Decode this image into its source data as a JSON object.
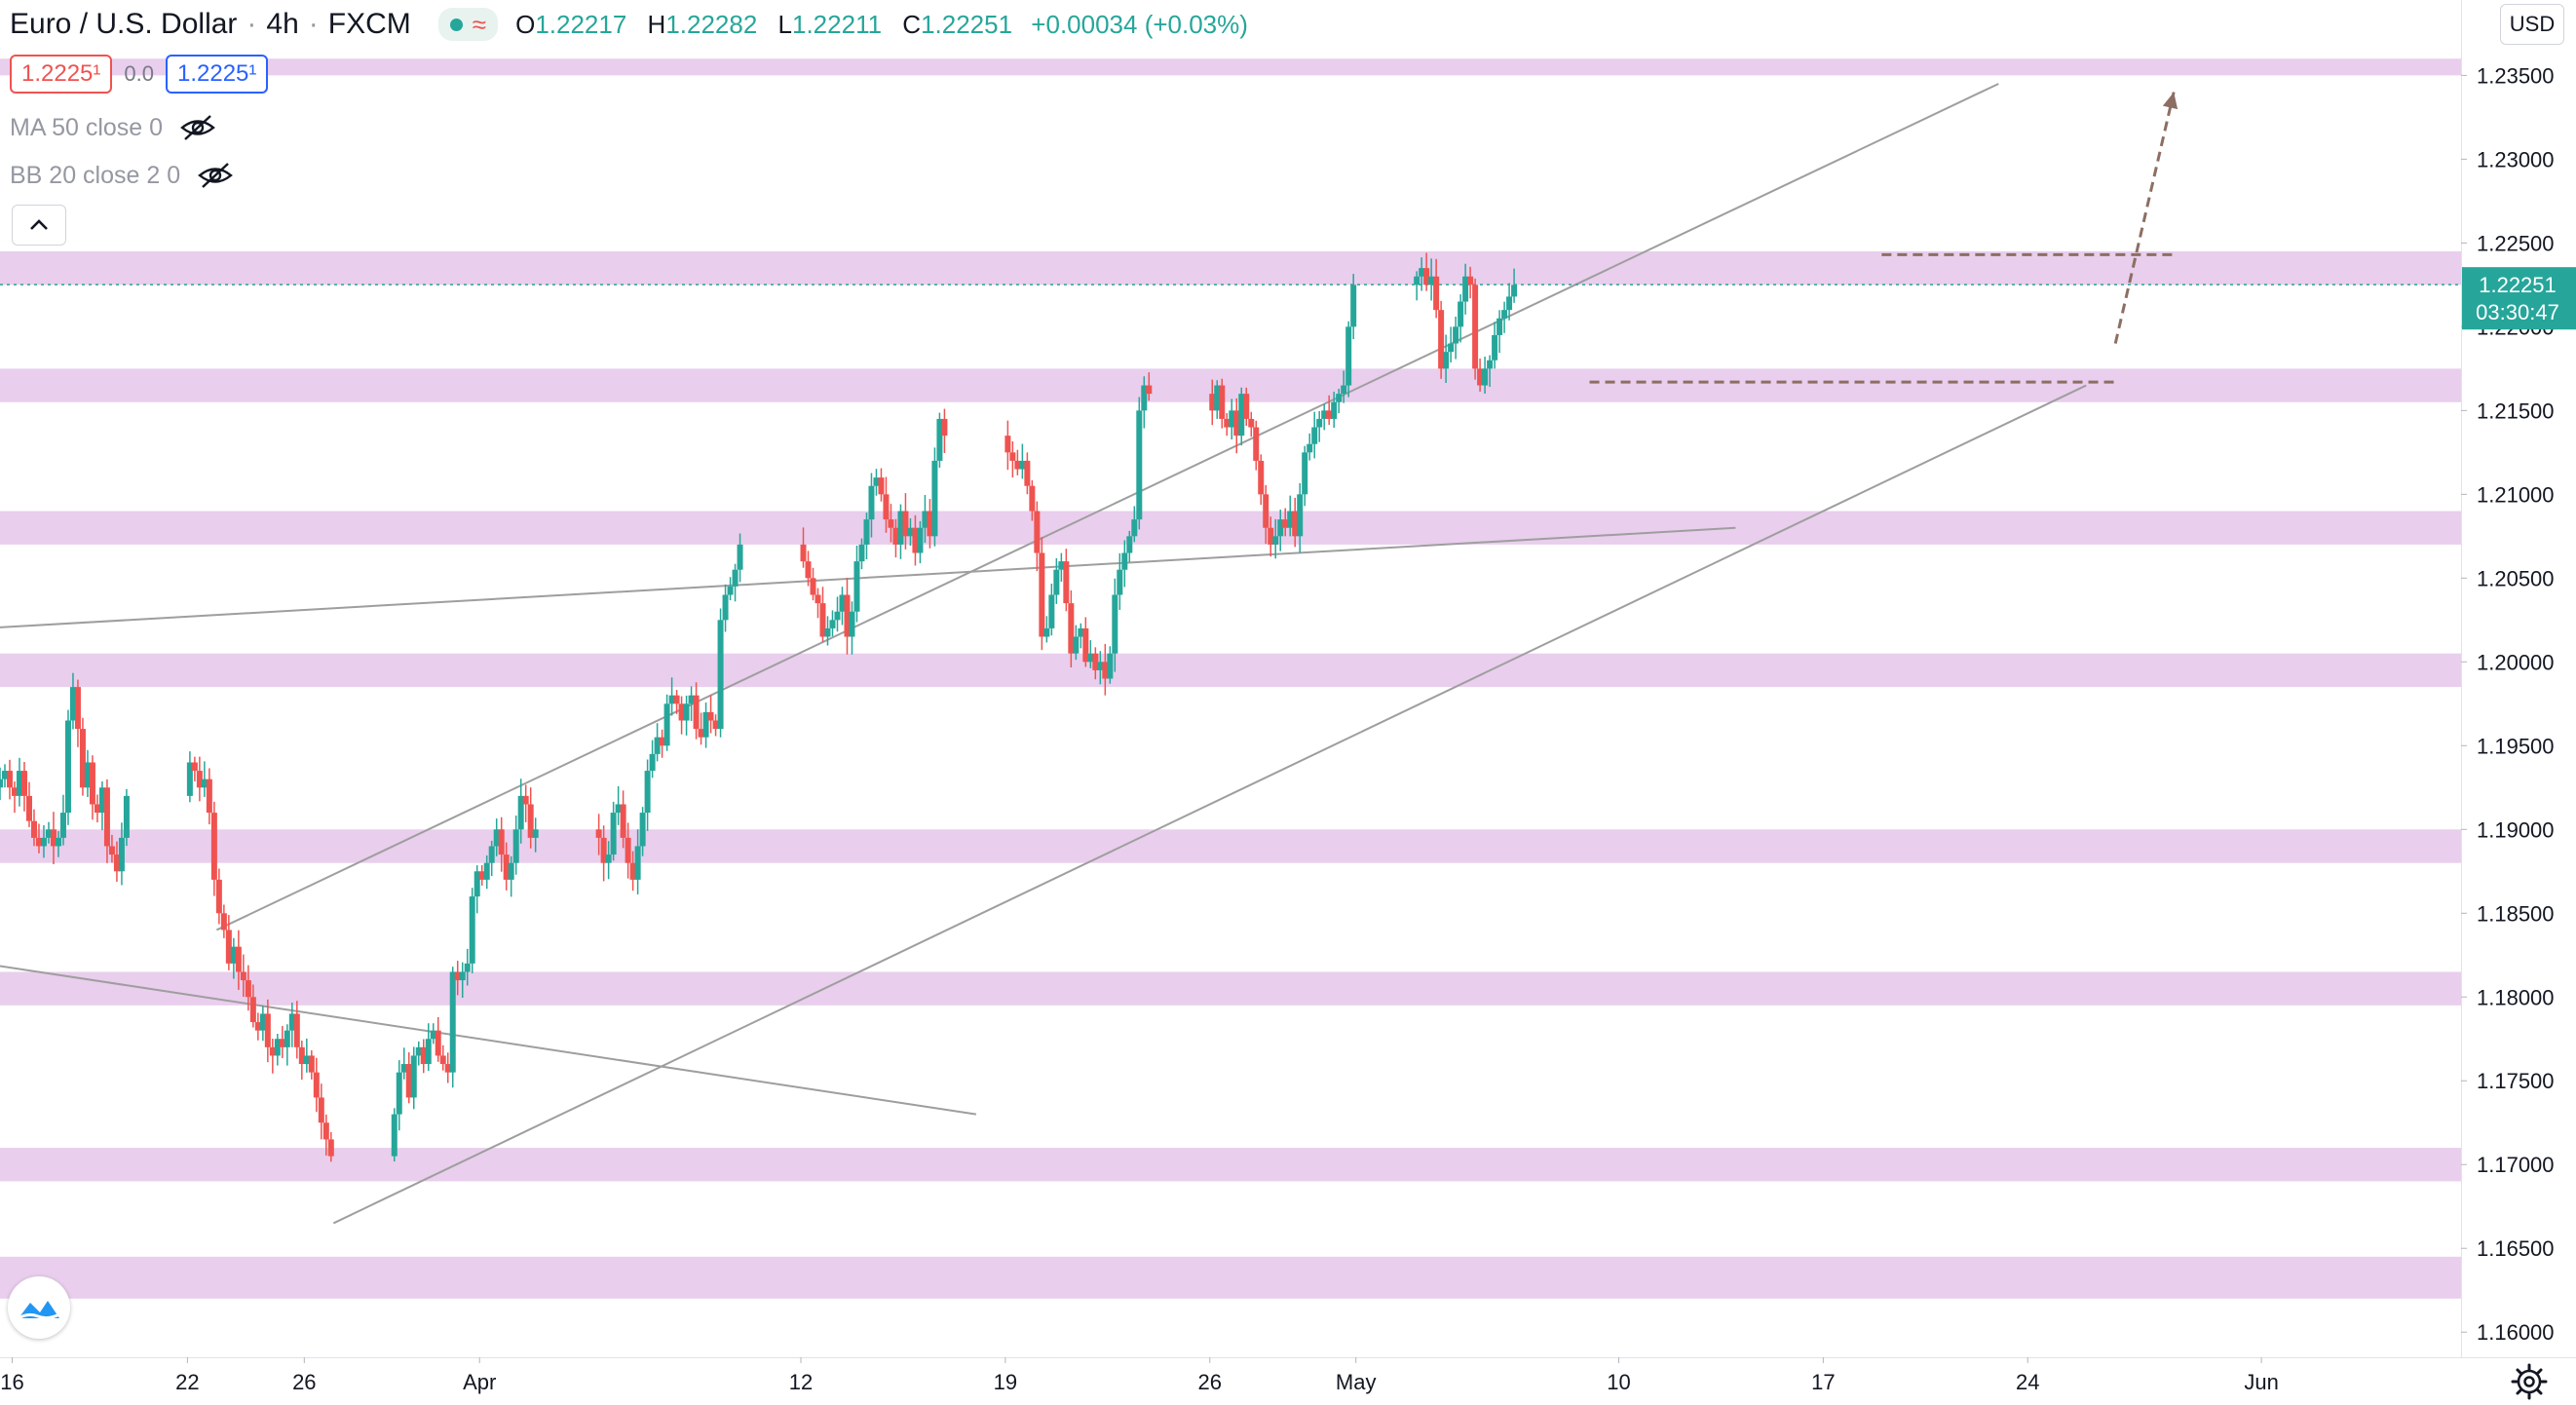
{
  "header": {
    "symbol": "Euro / U.S. Dollar",
    "interval": "4h",
    "exchange": "FXCM",
    "open_label": "O",
    "open": "1.22217",
    "high_label": "H",
    "high": "1.22282",
    "low_label": "L",
    "low": "1.22211",
    "close_label": "C",
    "close": "1.22251",
    "change": "+0.00034 (+0.03%)"
  },
  "quote": {
    "bid": "1.2225¹",
    "spread": "0.0",
    "ask": "1.2225¹"
  },
  "indicators": [
    {
      "label": "MA 50 close 0"
    },
    {
      "label": "BB 20 close 2 0"
    }
  ],
  "currency": "USD",
  "price_tag": {
    "price": "1.22251",
    "countdown": "03:30:47"
  },
  "colors": {
    "up": "#26a69a",
    "down": "#ef5350",
    "zone": "#e1bee7",
    "trendline": "#9e9e9e",
    "dashed": "#8d6e63"
  },
  "icons": {
    "visibility": "eye-off-icon",
    "collapse": "chevron-up-icon",
    "logo": "tradingview-logo-icon",
    "settings": "gear-icon"
  },
  "chart_data": {
    "type": "candlestick",
    "title": "Euro / U.S. Dollar · 4h · FXCM",
    "y_axis": {
      "ticks": [
        "1.16000",
        "1.16500",
        "1.17000",
        "1.17500",
        "1.18000",
        "1.18500",
        "1.19000",
        "1.19500",
        "1.20000",
        "1.20500",
        "1.21000",
        "1.21500",
        "1.22000",
        "1.22500",
        "1.23000",
        "1.23500"
      ],
      "range": [
        1.1585,
        1.2395
      ]
    },
    "x_axis": {
      "ticks": [
        {
          "label": "16",
          "date": "2021-03-16"
        },
        {
          "label": "22",
          "date": "2021-03-22"
        },
        {
          "label": "26",
          "date": "2021-03-26"
        },
        {
          "label": "Apr",
          "date": "2021-04-01"
        },
        {
          "label": "12",
          "date": "2021-04-12"
        },
        {
          "label": "19",
          "date": "2021-04-19"
        },
        {
          "label": "26",
          "date": "2021-04-26"
        },
        {
          "label": "May",
          "date": "2021-05-01"
        },
        {
          "label": "10",
          "date": "2021-05-10"
        },
        {
          "label": "17",
          "date": "2021-05-17"
        },
        {
          "label": "24",
          "date": "2021-05-24"
        },
        {
          "label": "Jun",
          "date": "2021-06-01"
        }
      ],
      "range": [
        "2021-03-15T14:00",
        "2021-06-07T20:00"
      ]
    },
    "candles": {
      "start": "2021-03-15T14:00",
      "interval_hours": 4,
      "weekend_gap": true,
      "close": [
        1.193,
        1.1935,
        1.1925,
        1.192,
        1.1935,
        1.192,
        1.1905,
        1.1895,
        1.189,
        1.1895,
        1.19,
        1.189,
        1.1895,
        1.191,
        1.1965,
        1.1985,
        1.196,
        1.1925,
        1.194,
        1.1915,
        1.191,
        1.1925,
        1.189,
        1.1885,
        1.1875,
        1.1895,
        1.192,
        1.194,
        1.1935,
        1.1925,
        1.193,
        1.191,
        1.187,
        1.185,
        1.184,
        1.182,
        1.183,
        1.1815,
        1.181,
        1.18,
        1.1785,
        1.178,
        1.179,
        1.177,
        1.1765,
        1.1775,
        1.177,
        1.178,
        1.179,
        1.177,
        1.176,
        1.1765,
        1.1755,
        1.174,
        1.1725,
        1.1715,
        1.1705,
        1.173,
        1.1755,
        1.176,
        1.174,
        1.1765,
        1.177,
        1.176,
        1.1775,
        1.178,
        1.1765,
        1.176,
        1.1755,
        1.1815,
        1.181,
        1.1815,
        1.182,
        1.186,
        1.1875,
        1.187,
        1.188,
        1.189,
        1.19,
        1.1885,
        1.187,
        1.188,
        1.19,
        1.192,
        1.1915,
        1.1895,
        1.19,
        1.1895,
        1.188,
        1.1885,
        1.191,
        1.1915,
        1.1895,
        1.188,
        1.187,
        1.189,
        1.191,
        1.1935,
        1.1945,
        1.1955,
        1.195,
        1.1975,
        1.198,
        1.1975,
        1.1965,
        1.1975,
        1.198,
        1.196,
        1.1955,
        1.197,
        1.1965,
        1.196,
        1.2025,
        1.204,
        1.2045,
        1.2055,
        1.207,
        1.206,
        1.205,
        1.204,
        1.2035,
        1.2015,
        1.202,
        1.2025,
        1.203,
        1.204,
        1.2015,
        1.203,
        1.206,
        1.207,
        1.2085,
        1.2105,
        1.211,
        1.21,
        1.2085,
        1.208,
        1.207,
        1.209,
        1.2075,
        1.208,
        1.2065,
        1.208,
        1.209,
        1.2075,
        1.212,
        1.2145,
        1.2135,
        1.2125,
        1.212,
        1.2115,
        1.212,
        1.2105,
        1.209,
        1.2065,
        1.2015,
        1.202,
        1.204,
        1.2055,
        1.206,
        1.2035,
        1.2005,
        1.2015,
        1.202,
        1.2,
        1.2005,
        1.1995,
        1.2,
        1.199,
        1.2005,
        1.204,
        1.2055,
        1.2065,
        1.2075,
        1.2085,
        1.215,
        1.2165,
        1.216,
        1.215,
        1.2165,
        1.2145,
        1.214,
        1.215,
        1.2135,
        1.216,
        1.2145,
        1.214,
        1.212,
        1.21,
        1.208,
        1.207,
        1.2075,
        1.2085,
        1.208,
        1.209,
        1.2075,
        1.21,
        1.2125,
        1.213,
        1.214,
        1.2145,
        1.215,
        1.2145,
        1.2155,
        1.216,
        1.2165,
        1.22,
        1.2225,
        1.223,
        1.2235,
        1.2225,
        1.223,
        1.221,
        1.2175,
        1.2185,
        1.219,
        1.22,
        1.2215,
        1.223,
        1.2225,
        1.2175,
        1.2165,
        1.2175,
        1.218,
        1.2195,
        1.2205,
        1.221,
        1.2218,
        1.2225
      ]
    },
    "zones": [
      {
        "from": 1.235,
        "to": 1.236
      },
      {
        "from": 1.2225,
        "to": 1.2245
      },
      {
        "from": 1.2155,
        "to": 1.2175
      },
      {
        "from": 1.207,
        "to": 1.209
      },
      {
        "from": 1.1985,
        "to": 1.2005
      },
      {
        "from": 1.188,
        "to": 1.19
      },
      {
        "from": 1.1795,
        "to": 1.1815
      },
      {
        "from": 1.169,
        "to": 1.171
      },
      {
        "from": 1.162,
        "to": 1.1645
      }
    ],
    "trendlines": [
      {
        "from": [
          "2021-03-23",
          1.184
        ],
        "to": [
          "2021-05-23",
          1.2345
        ]
      },
      {
        "from": [
          "2021-03-27",
          1.1665
        ],
        "to": [
          "2021-05-26",
          1.2165
        ]
      },
      {
        "from": [
          "2021-03-15",
          1.202
        ],
        "to": [
          "2021-05-14",
          1.208
        ]
      },
      {
        "from": [
          "2021-03-15",
          1.182
        ],
        "to": [
          "2021-04-18",
          1.173
        ]
      }
    ],
    "dashed_levels": [
      {
        "value": 1.2243,
        "from": "2021-05-19",
        "to": "2021-05-29"
      },
      {
        "value": 1.2167,
        "from": "2021-05-09",
        "to": "2021-05-27"
      }
    ],
    "projection_arrow": {
      "from": [
        "2021-05-27",
        1.219
      ],
      "to": [
        "2021-05-29",
        1.234
      ]
    },
    "last_price": 1.22251
  }
}
